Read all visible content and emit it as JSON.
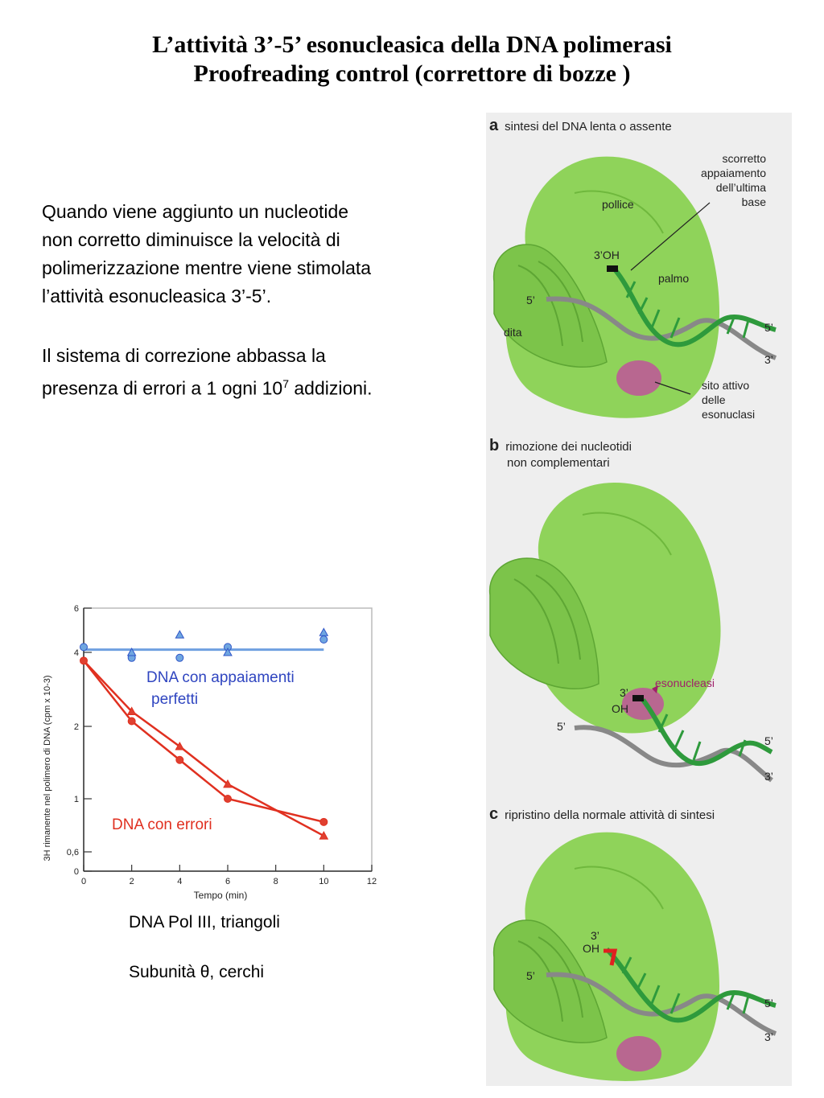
{
  "slide": {
    "title_line1": "L’attività 3’-5’ esonucleasica della DNA polimerasi",
    "title_line2": "Proofreading control (correttore di bozze )",
    "paragraph1": [
      "Quando viene aggiunto un nucleotide",
      "non corretto diminuisce la velocità di",
      "polimerizzazione mentre viene stimolata",
      "l’attività esonucleasica 3’-5’."
    ],
    "paragraph2_line1": "Il sistema di correzione abbassa la",
    "paragraph2_line2_pre": "presenza di errori a 1 ogni 10",
    "paragraph2_sup": "7",
    "paragraph2_line2_post": " addizioni.",
    "caption1": "DNA Pol III, triangoli",
    "caption2": "Subunità θ, cerchi"
  },
  "figure": {
    "panel_a": {
      "letter": "a",
      "label": "sintesi del DNA lenta o assente",
      "scorretto": [
        "scorretto",
        "appaiamento",
        "dell’ultima",
        "base"
      ],
      "pollice": "pollice",
      "oh": "3’OH",
      "palmo": "palmo",
      "five_prime_left": "5’",
      "dita": "dita",
      "five_prime_right": "5’",
      "three_prime": "3’",
      "sito": [
        "sito attivo",
        "delle",
        "esonuclasi"
      ]
    },
    "panel_b": {
      "letter": "b",
      "label": [
        "rimozione dei nucleotidi",
        "non complementari"
      ],
      "three": "3’",
      "oh": "OH",
      "esonucleasi": "esonucleasi",
      "five_prime_left": "5’",
      "five_prime_right": "5’",
      "three_prime": "3’"
    },
    "panel_c": {
      "letter": "c",
      "label": "ripristino della normale attività di sintesi",
      "three": "3’",
      "oh": "OH",
      "five_prime_left": "5’",
      "five_prime_right": "5’",
      "three_prime": "3’"
    },
    "colors": {
      "enzyme": "#8fd35a",
      "enzyme_dark": "#6fb83d",
      "active_site": "#c0549a",
      "strand_green": "#2e9a3c",
      "strand_gray": "#888888",
      "mismatch_red": "#e02020"
    }
  },
  "chart_data": {
    "type": "line",
    "xlabel": "Tempo (min)",
    "ylabel": "3H rimanente nel polimero di DNA (cpm x 10-3)",
    "xlim": [
      0,
      12
    ],
    "x_ticks": [
      "0",
      "2",
      "4",
      "6",
      "8",
      "10",
      "12"
    ],
    "y_ticks": [
      "0",
      "0,6",
      "1",
      "2",
      "4",
      "6"
    ],
    "y_scale": "log",
    "series": [
      {
        "name": "DNA con appaiamenti perfetti",
        "color": "#2f55c8",
        "line_color": "#6fa0e0",
        "line": [
          [
            0,
            4.1
          ],
          [
            10,
            4.1
          ]
        ],
        "circles": [
          [
            0,
            4.2
          ],
          [
            2,
            3.8
          ],
          [
            4,
            3.8
          ],
          [
            6,
            4.2
          ],
          [
            10,
            4.5
          ]
        ],
        "triangles": [
          [
            2,
            4.0
          ],
          [
            4,
            4.7
          ],
          [
            6,
            4.0
          ],
          [
            10,
            4.8
          ]
        ]
      },
      {
        "name": "DNA con errori",
        "color": "#e03020",
        "line_color": "#e03020",
        "circles": [
          [
            0,
            3.7
          ],
          [
            2,
            2.1
          ],
          [
            4,
            1.45
          ],
          [
            6,
            1.0
          ],
          [
            10,
            0.8
          ]
        ],
        "triangles": [
          [
            2,
            2.3
          ],
          [
            4,
            1.65
          ],
          [
            6,
            1.15
          ],
          [
            10,
            0.7
          ]
        ]
      }
    ],
    "annotations": {
      "perfect_line1": "DNA con appaiamenti",
      "perfect_line2": "perfetti",
      "errors": "DNA con errori"
    }
  }
}
